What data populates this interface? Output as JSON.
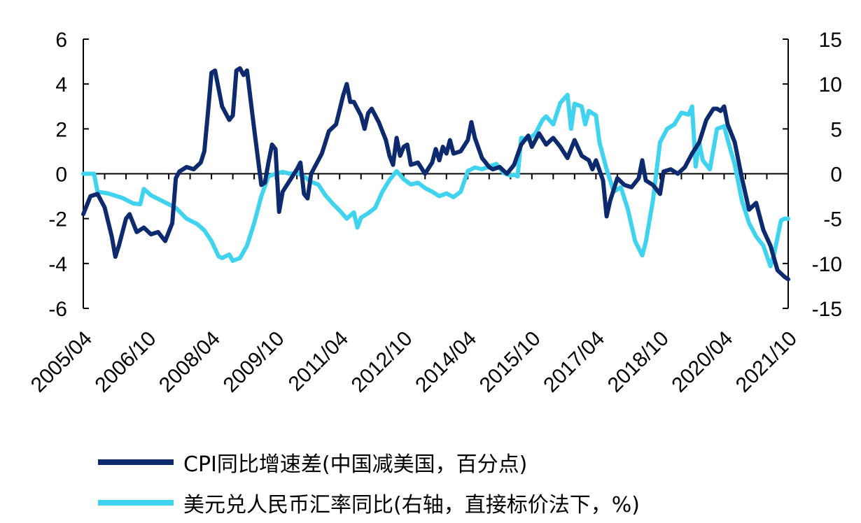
{
  "chart_data": {
    "type": "line",
    "x_ticks": [
      "2005/04",
      "2006/10",
      "2008/04",
      "2009/10",
      "2011/04",
      "2012/10",
      "2014/04",
      "2015/10",
      "2017/04",
      "2018/10",
      "2020/04",
      "2021/10"
    ],
    "x_start": "2005/04",
    "x_end": "2021/10",
    "y_left": {
      "min": -6,
      "max": 6,
      "ticks": [
        6,
        4,
        2,
        0,
        -2,
        -4,
        -6
      ]
    },
    "y_right": {
      "min": -15,
      "max": 15,
      "ticks": [
        15,
        10,
        5,
        0,
        -5,
        -10,
        -15
      ]
    },
    "series": [
      {
        "name": "CPI同比增速差(中国减美国，百分点)",
        "axis": "left",
        "color": "#0d2a6e",
        "points": [
          [
            "2005/04",
            -1.8
          ],
          [
            "2005/06",
            -1.0
          ],
          [
            "2005/08",
            -0.9
          ],
          [
            "2005/10",
            -1.5
          ],
          [
            "2005/12",
            -2.8
          ],
          [
            "2006/01",
            -3.7
          ],
          [
            "2006/02",
            -3.2
          ],
          [
            "2006/04",
            -2.0
          ],
          [
            "2006/05",
            -1.8
          ],
          [
            "2006/07",
            -2.6
          ],
          [
            "2006/09",
            -2.4
          ],
          [
            "2006/11",
            -2.7
          ],
          [
            "2007/01",
            -2.6
          ],
          [
            "2007/03",
            -3.0
          ],
          [
            "2007/05",
            -2.2
          ],
          [
            "2007/06",
            -0.2
          ],
          [
            "2007/07",
            0.1
          ],
          [
            "2007/09",
            0.3
          ],
          [
            "2007/11",
            0.2
          ],
          [
            "2008/01",
            0.5
          ],
          [
            "2008/02",
            1.0
          ],
          [
            "2008/03",
            2.7
          ],
          [
            "2008/04",
            4.5
          ],
          [
            "2008/05",
            4.6
          ],
          [
            "2008/07",
            3.0
          ],
          [
            "2008/09",
            2.4
          ],
          [
            "2008/10",
            2.6
          ],
          [
            "2008/11",
            4.6
          ],
          [
            "2008/12",
            4.7
          ],
          [
            "2009/01",
            4.4
          ],
          [
            "2009/02",
            4.6
          ],
          [
            "2009/04",
            2.0
          ],
          [
            "2009/06",
            -0.5
          ],
          [
            "2009/07",
            -0.4
          ],
          [
            "2009/08",
            0.5
          ],
          [
            "2009/09",
            1.3
          ],
          [
            "2009/10",
            1.1
          ],
          [
            "2009/11",
            -1.7
          ],
          [
            "2009/12",
            -0.8
          ],
          [
            "2010/02",
            -0.3
          ],
          [
            "2010/04",
            0.2
          ],
          [
            "2010/05",
            0.5
          ],
          [
            "2010/06",
            -0.9
          ],
          [
            "2010/07",
            -1.1
          ],
          [
            "2010/08",
            0.0
          ],
          [
            "2010/09",
            0.3
          ],
          [
            "2010/11",
            0.9
          ],
          [
            "2011/01",
            1.9
          ],
          [
            "2011/03",
            2.2
          ],
          [
            "2011/05",
            3.5
          ],
          [
            "2011/06",
            4.0
          ],
          [
            "2011/07",
            3.2
          ],
          [
            "2011/08",
            3.2
          ],
          [
            "2011/10",
            2.6
          ],
          [
            "2011/11",
            2.0
          ],
          [
            "2011/12",
            2.7
          ],
          [
            "2012/01",
            2.9
          ],
          [
            "2012/03",
            2.3
          ],
          [
            "2012/05",
            1.5
          ],
          [
            "2012/06",
            0.8
          ],
          [
            "2012/07",
            0.4
          ],
          [
            "2012/08",
            1.6
          ],
          [
            "2012/09",
            0.8
          ],
          [
            "2012/10",
            1.2
          ],
          [
            "2012/11",
            1.3
          ],
          [
            "2012/12",
            0.4
          ],
          [
            "2013/02",
            0.5
          ],
          [
            "2013/04",
            0.0
          ],
          [
            "2013/06",
            0.5
          ],
          [
            "2013/07",
            1.1
          ],
          [
            "2013/08",
            0.6
          ],
          [
            "2013/09",
            1.2
          ],
          [
            "2013/10",
            0.9
          ],
          [
            "2013/11",
            1.5
          ],
          [
            "2013/12",
            0.9
          ],
          [
            "2014/02",
            1.0
          ],
          [
            "2014/04",
            1.5
          ],
          [
            "2014/05",
            2.3
          ],
          [
            "2014/06",
            1.6
          ],
          [
            "2014/08",
            0.7
          ],
          [
            "2014/10",
            0.3
          ],
          [
            "2014/11",
            0.2
          ],
          [
            "2015/01",
            0.3
          ],
          [
            "2015/03",
            0.0
          ],
          [
            "2015/05",
            0.4
          ],
          [
            "2015/07",
            1.3
          ],
          [
            "2015/09",
            1.7
          ],
          [
            "2015/10",
            1.2
          ],
          [
            "2015/12",
            1.8
          ],
          [
            "2016/02",
            1.3
          ],
          [
            "2016/04",
            1.6
          ],
          [
            "2016/06",
            1.2
          ],
          [
            "2016/08",
            0.7
          ],
          [
            "2016/10",
            1.5
          ],
          [
            "2016/12",
            0.8
          ],
          [
            "2017/02",
            0.6
          ],
          [
            "2017/03",
            0.2
          ],
          [
            "2017/04",
            0.6
          ],
          [
            "2017/06",
            -0.3
          ],
          [
            "2017/07",
            -1.9
          ],
          [
            "2017/08",
            -1.2
          ],
          [
            "2017/10",
            -0.2
          ],
          [
            "2017/12",
            -0.5
          ],
          [
            "2018/02",
            -0.6
          ],
          [
            "2018/04",
            -0.2
          ],
          [
            "2018/05",
            0.6
          ],
          [
            "2018/06",
            -0.3
          ],
          [
            "2018/08",
            -0.5
          ],
          [
            "2018/10",
            -0.9
          ],
          [
            "2018/11",
            0.1
          ],
          [
            "2019/01",
            0.2
          ],
          [
            "2019/03",
            0.0
          ],
          [
            "2019/05",
            0.3
          ],
          [
            "2019/07",
            0.9
          ],
          [
            "2019/09",
            1.4
          ],
          [
            "2019/11",
            2.4
          ],
          [
            "2020/01",
            2.9
          ],
          [
            "2020/02",
            2.9
          ],
          [
            "2020/03",
            2.8
          ],
          [
            "2020/04",
            3.0
          ],
          [
            "2020/05",
            2.2
          ],
          [
            "2020/07",
            1.4
          ],
          [
            "2020/09",
            -0.2
          ],
          [
            "2020/11",
            -1.6
          ],
          [
            "2021/01",
            -1.3
          ],
          [
            "2021/03",
            -2.5
          ],
          [
            "2021/05",
            -3.2
          ],
          [
            "2021/07",
            -4.3
          ],
          [
            "2021/09",
            -4.6
          ],
          [
            "2021/10",
            -4.7
          ]
        ]
      },
      {
        "name": "美元兑人民币汇率同比(右轴，直接标价法下，%)",
        "axis": "right",
        "color": "#3fd3f0",
        "points": [
          [
            "2005/04",
            0.0
          ],
          [
            "2005/06",
            0.0
          ],
          [
            "2005/07",
            0.0
          ],
          [
            "2005/08",
            -2.0
          ],
          [
            "2005/11",
            -2.2
          ],
          [
            "2006/03",
            -2.7
          ],
          [
            "2006/06",
            -3.3
          ],
          [
            "2006/08",
            -3.4
          ],
          [
            "2006/09",
            -1.7
          ],
          [
            "2006/11",
            -2.4
          ],
          [
            "2007/03",
            -3.2
          ],
          [
            "2007/06",
            -3.8
          ],
          [
            "2007/09",
            -5.0
          ],
          [
            "2007/12",
            -5.6
          ],
          [
            "2008/02",
            -6.3
          ],
          [
            "2008/04",
            -7.5
          ],
          [
            "2008/06",
            -9.2
          ],
          [
            "2008/07",
            -9.4
          ],
          [
            "2008/09",
            -9.0
          ],
          [
            "2008/10",
            -9.7
          ],
          [
            "2008/12",
            -9.4
          ],
          [
            "2009/02",
            -8.0
          ],
          [
            "2009/04",
            -5.5
          ],
          [
            "2009/06",
            -2.5
          ],
          [
            "2009/08",
            -0.3
          ],
          [
            "2009/10",
            0.0
          ],
          [
            "2009/12",
            0.2
          ],
          [
            "2010/02",
            0.0
          ],
          [
            "2010/04",
            0.1
          ],
          [
            "2010/06",
            -0.3
          ],
          [
            "2010/08",
            -0.9
          ],
          [
            "2010/10",
            -1.2
          ],
          [
            "2010/12",
            -2.4
          ],
          [
            "2011/02",
            -3.3
          ],
          [
            "2011/04",
            -4.1
          ],
          [
            "2011/06",
            -5.0
          ],
          [
            "2011/08",
            -4.3
          ],
          [
            "2011/09",
            -6.0
          ],
          [
            "2011/10",
            -4.9
          ],
          [
            "2011/12",
            -4.4
          ],
          [
            "2012/02",
            -3.8
          ],
          [
            "2012/04",
            -2.0
          ],
          [
            "2012/06",
            -0.7
          ],
          [
            "2012/08",
            0.3
          ],
          [
            "2012/10",
            -0.6
          ],
          [
            "2012/12",
            -1.2
          ],
          [
            "2013/02",
            -1.0
          ],
          [
            "2013/04",
            -1.6
          ],
          [
            "2013/06",
            -2.0
          ],
          [
            "2013/08",
            -2.5
          ],
          [
            "2013/10",
            -2.2
          ],
          [
            "2013/12",
            -2.6
          ],
          [
            "2014/02",
            -2.0
          ],
          [
            "2014/04",
            0.3
          ],
          [
            "2014/06",
            0.7
          ],
          [
            "2014/08",
            0.5
          ],
          [
            "2014/10",
            0.8
          ],
          [
            "2014/12",
            1.1
          ],
          [
            "2015/02",
            0.1
          ],
          [
            "2015/04",
            -0.2
          ],
          [
            "2015/05",
            -0.1
          ],
          [
            "2015/06",
            -0.3
          ],
          [
            "2015/07",
            4.0
          ],
          [
            "2015/09",
            3.8
          ],
          [
            "2015/11",
            4.5
          ],
          [
            "2016/01",
            6.0
          ],
          [
            "2016/02",
            6.4
          ],
          [
            "2016/04",
            5.5
          ],
          [
            "2016/06",
            7.9
          ],
          [
            "2016/08",
            8.8
          ],
          [
            "2016/09",
            5.0
          ],
          [
            "2016/10",
            7.8
          ],
          [
            "2016/12",
            7.5
          ],
          [
            "2017/01",
            5.5
          ],
          [
            "2017/02",
            7.0
          ],
          [
            "2017/04",
            6.5
          ],
          [
            "2017/05",
            3.5
          ],
          [
            "2017/07",
            0.5
          ],
          [
            "2017/09",
            -2.0
          ],
          [
            "2017/11",
            -1.5
          ],
          [
            "2018/01",
            -4.0
          ],
          [
            "2018/03",
            -7.5
          ],
          [
            "2018/05",
            -9.1
          ],
          [
            "2018/06",
            -7.6
          ],
          [
            "2018/08",
            -3.0
          ],
          [
            "2018/10",
            3.5
          ],
          [
            "2018/12",
            5.0
          ],
          [
            "2019/02",
            5.5
          ],
          [
            "2019/04",
            6.8
          ],
          [
            "2019/06",
            6.6
          ],
          [
            "2019/07",
            7.5
          ],
          [
            "2019/08",
            0.8
          ],
          [
            "2019/09",
            3.5
          ],
          [
            "2019/10",
            1.5
          ],
          [
            "2019/12",
            0.5
          ],
          [
            "2020/02",
            5.0
          ],
          [
            "2020/04",
            5.3
          ],
          [
            "2020/05",
            3.8
          ],
          [
            "2020/07",
            1.0
          ],
          [
            "2020/09",
            -3.0
          ],
          [
            "2020/11",
            -5.5
          ],
          [
            "2021/01",
            -7.0
          ],
          [
            "2021/03",
            -8.0
          ],
          [
            "2021/05",
            -10.3
          ],
          [
            "2021/06",
            -9.0
          ],
          [
            "2021/08",
            -5.2
          ],
          [
            "2021/09",
            -5.0
          ],
          [
            "2021/10",
            -5.0
          ]
        ]
      }
    ]
  }
}
